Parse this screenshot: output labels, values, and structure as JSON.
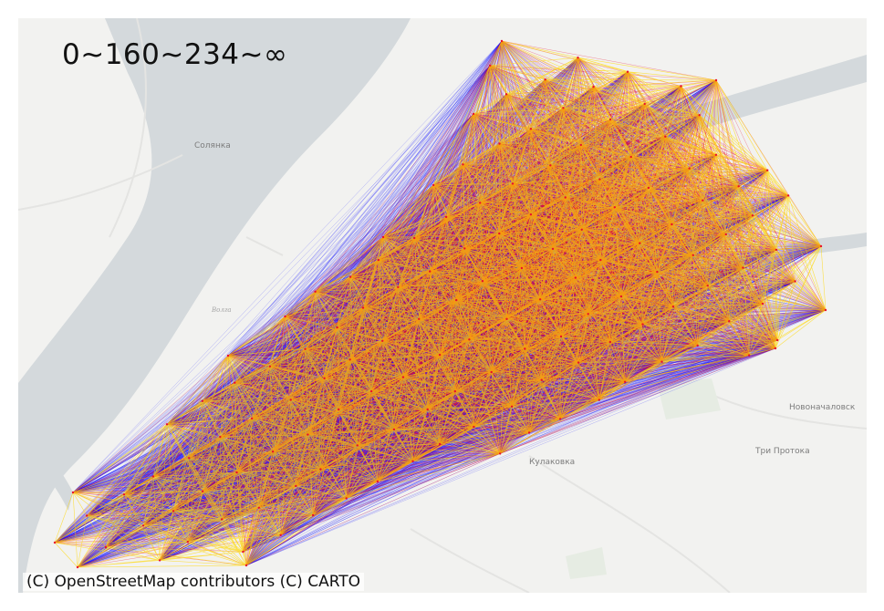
{
  "map": {
    "range_label": "0~160~234~∞",
    "attribution": "(C) OpenStreetMap contributors (C) CARTO",
    "place_labels": [
      "Солянка",
      "Новоначаловск",
      "Три Протока",
      "Кулаковка"
    ],
    "river_label": "Волга",
    "colors": {
      "background": "#f2f2f0",
      "water": "#d4d9dc",
      "short_range": "#ffd700",
      "mid_range": "#e8102e",
      "long_range": "#1010ff"
    }
  }
}
